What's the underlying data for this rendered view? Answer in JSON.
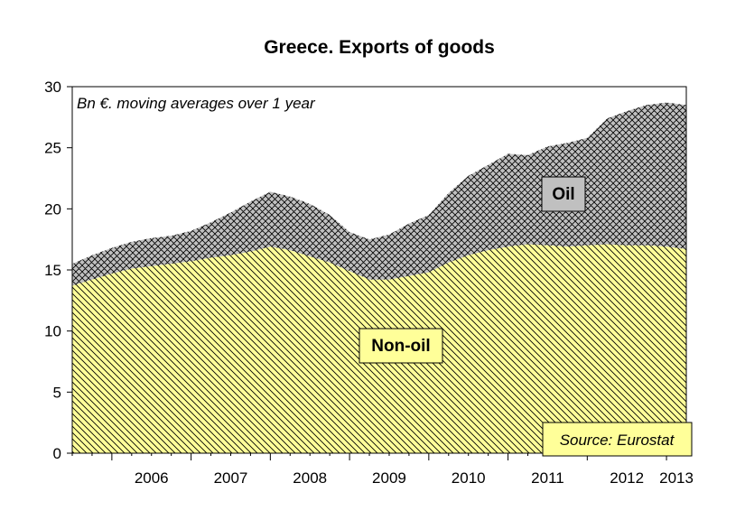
{
  "chart_data": {
    "type": "area",
    "title": "Greece. Exports of goods",
    "annotation": "Bn €. moving averages over 1 year",
    "source": "Source: Eurostat",
    "stacked": true,
    "ylim": [
      0,
      30
    ],
    "yticks": [
      0,
      5,
      10,
      15,
      20,
      25,
      30
    ],
    "xlim": [
      2005.5,
      2013.25
    ],
    "xtick_labels": [
      "2006",
      "2007",
      "2008",
      "2009",
      "2010",
      "2011",
      "2012",
      "2013"
    ],
    "x": [
      2005.5,
      2005.75,
      2006.0,
      2006.25,
      2006.5,
      2006.75,
      2007.0,
      2007.25,
      2007.5,
      2007.75,
      2008.0,
      2008.25,
      2008.5,
      2008.75,
      2009.0,
      2009.25,
      2009.5,
      2009.75,
      2010.0,
      2010.25,
      2010.5,
      2010.75,
      2011.0,
      2011.25,
      2011.5,
      2011.75,
      2012.0,
      2012.25,
      2012.5,
      2012.75,
      2013.0,
      2013.25
    ],
    "series": [
      {
        "name": "Non-oil",
        "color": "#ffff99",
        "values": [
          13.7,
          14.2,
          14.7,
          15.1,
          15.3,
          15.5,
          15.7,
          16.0,
          16.2,
          16.5,
          16.9,
          16.6,
          16.1,
          15.6,
          14.9,
          14.2,
          14.2,
          14.5,
          14.8,
          15.6,
          16.2,
          16.6,
          16.9,
          17.1,
          17.0,
          16.9,
          17.0,
          17.1,
          17.0,
          17.0,
          16.9,
          16.7
        ]
      },
      {
        "name": "Oil",
        "color": "#c0c0c0",
        "values": [
          1.8,
          2.0,
          2.1,
          2.2,
          2.3,
          2.3,
          2.5,
          2.9,
          3.5,
          4.1,
          4.5,
          4.4,
          4.3,
          3.9,
          3.2,
          3.3,
          3.7,
          4.3,
          4.7,
          5.7,
          6.5,
          7.0,
          7.6,
          7.3,
          8.1,
          8.5,
          8.8,
          10.3,
          11.0,
          11.5,
          11.8,
          11.8
        ]
      }
    ],
    "labels": {
      "oil": "Oil",
      "nonoil": "Non-oil"
    }
  }
}
